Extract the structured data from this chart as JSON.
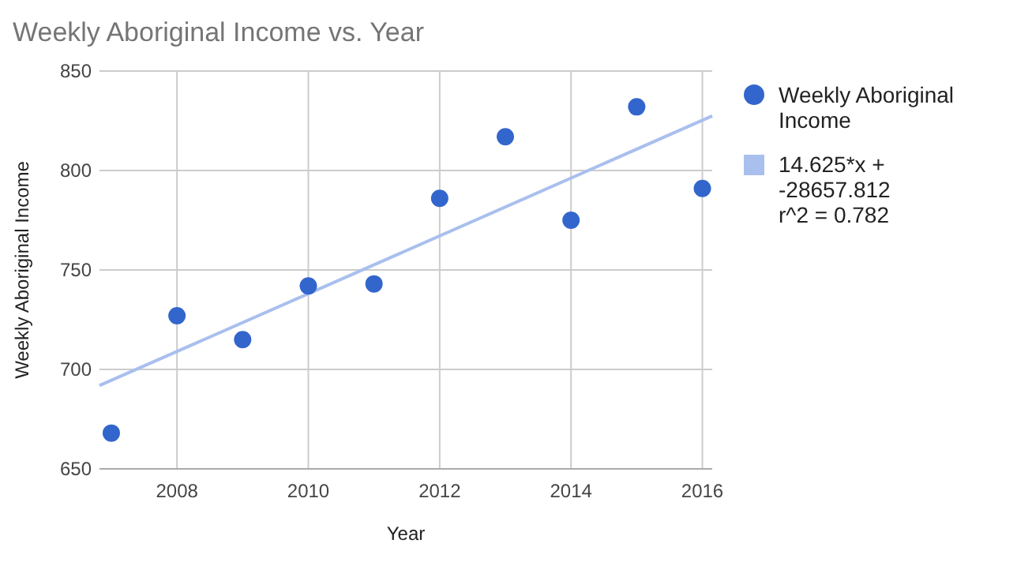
{
  "chart_data": {
    "type": "scatter",
    "title": "Weekly Aboriginal Income vs. Year",
    "xlabel": "Year",
    "ylabel": "Weekly Aboriginal Income",
    "x": [
      2007,
      2008,
      2009,
      2010,
      2011,
      2012,
      2013,
      2014,
      2015,
      2016
    ],
    "series": [
      {
        "name": "Weekly Aboriginal Income",
        "color": "#3366cc",
        "marker": "circle",
        "values": [
          668,
          727,
          715,
          742,
          743,
          786,
          817,
          775,
          832,
          791
        ]
      },
      {
        "name": "14.625*x + -28657.812\nr^2 = 0.782",
        "type": "line",
        "color": "#a9bfee",
        "x": [
          2006.82,
          2016.15
        ],
        "values": [
          691.9,
          827.4
        ]
      }
    ],
    "xlim": [
      2006.82,
      2016.15
    ],
    "xticks": [
      2008,
      2010,
      2012,
      2014,
      2016
    ],
    "ylim": [
      650,
      850
    ],
    "yticks": [
      650,
      700,
      750,
      800,
      850
    ],
    "grid": true,
    "legend": "right"
  }
}
